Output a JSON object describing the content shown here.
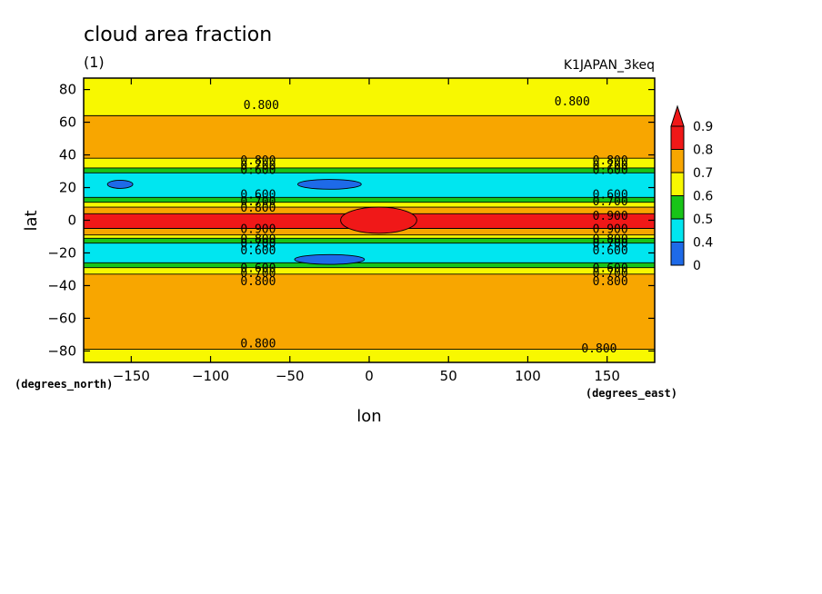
{
  "chart_data": {
    "type": "heatmap",
    "title": "cloud area fraction",
    "subtitle": "(1)",
    "run_label": "K1JAPAN_3keq",
    "xlabel": "lon",
    "ylabel": "lat",
    "x_unit": "(degrees_east)",
    "y_unit": "(degrees_north)",
    "xlim": [
      -180,
      180
    ],
    "ylim": [
      -87,
      87
    ],
    "x_ticks": [
      -150,
      -100,
      -50,
      0,
      50,
      100,
      150
    ],
    "x_tick_labels": [
      "−150",
      "−100",
      "−50",
      "0",
      "50",
      "100",
      "150"
    ],
    "y_ticks": [
      -80,
      -60,
      -40,
      -20,
      0,
      20,
      40,
      60,
      80
    ],
    "y_tick_labels": [
      "−80",
      "−60",
      "−40",
      "−20",
      "0",
      "20",
      "40",
      "60",
      "80"
    ],
    "zonal_bands": [
      {
        "lat": [
          64,
          87
        ],
        "level": 0.7
      },
      {
        "lat": [
          38,
          64
        ],
        "level": 0.8
      },
      {
        "lat": [
          32,
          38
        ],
        "level": 0.7
      },
      {
        "lat": [
          29,
          32
        ],
        "level": 0.6
      },
      {
        "lat": [
          14,
          29
        ],
        "level": 0.5
      },
      {
        "lat": [
          11,
          14
        ],
        "level": 0.6
      },
      {
        "lat": [
          8,
          11
        ],
        "level": 0.7
      },
      {
        "lat": [
          4,
          8
        ],
        "level": 0.8
      },
      {
        "lat": [
          -5,
          4
        ],
        "level": 0.9
      },
      {
        "lat": [
          -9,
          -5
        ],
        "level": 0.8
      },
      {
        "lat": [
          -11,
          -9
        ],
        "level": 0.7
      },
      {
        "lat": [
          -14,
          -11
        ],
        "level": 0.6
      },
      {
        "lat": [
          -26,
          -14
        ],
        "level": 0.5
      },
      {
        "lat": [
          -29,
          -26
        ],
        "level": 0.6
      },
      {
        "lat": [
          -33,
          -29
        ],
        "level": 0.7
      },
      {
        "lat": [
          -79,
          -33
        ],
        "level": 0.8
      },
      {
        "lat": [
          -87,
          -79
        ],
        "level": 0.7
      }
    ],
    "features": [
      {
        "shape": "ellipse",
        "lon": 6,
        "lat": 0,
        "rlon": 24,
        "rlat": 8,
        "level": 0.9
      },
      {
        "shape": "ellipse",
        "lon": -25,
        "lat": 22,
        "rlon": 20,
        "rlat": 3,
        "level": 0.4
      },
      {
        "shape": "ellipse",
        "lon": -25,
        "lat": -24,
        "rlon": 22,
        "rlat": 3,
        "level": 0.4
      },
      {
        "shape": "ellipse",
        "lon": -157,
        "lat": 22,
        "rlon": 8,
        "rlat": 2.5,
        "level": 0.4
      }
    ],
    "contour_labels": [
      {
        "text": "0.800",
        "lon": -68,
        "lat": 71
      },
      {
        "text": "0.800",
        "lon": 128,
        "lat": 73
      },
      {
        "text": "0.800",
        "lon": -70,
        "lat": -75
      },
      {
        "text": "0.800",
        "lon": 145,
        "lat": -78
      },
      {
        "text": "0.800",
        "lon": -70,
        "lat": 37
      },
      {
        "text": "0.700",
        "lon": -70,
        "lat": 34
      },
      {
        "text": "0.600",
        "lon": -70,
        "lat": 31
      },
      {
        "text": "0.600",
        "lon": -70,
        "lat": 16
      },
      {
        "text": "0.700",
        "lon": -70,
        "lat": 12
      },
      {
        "text": "0.800",
        "lon": -70,
        "lat": 8
      },
      {
        "text": "0.900",
        "lon": -70,
        "lat": -5
      },
      {
        "text": "0.800",
        "lon": -70,
        "lat": -11
      },
      {
        "text": "0.700",
        "lon": -70,
        "lat": -14
      },
      {
        "text": "0.600",
        "lon": -70,
        "lat": -18
      },
      {
        "text": "0.600",
        "lon": -70,
        "lat": -29
      },
      {
        "text": "0.700",
        "lon": -70,
        "lat": -32
      },
      {
        "text": "0.800",
        "lon": -70,
        "lat": -37
      },
      {
        "text": "0.800",
        "lon": 152,
        "lat": 37
      },
      {
        "text": "0.700",
        "lon": 152,
        "lat": 34
      },
      {
        "text": "0.600",
        "lon": 152,
        "lat": 31
      },
      {
        "text": "0.600",
        "lon": 152,
        "lat": 16
      },
      {
        "text": "0.700",
        "lon": 152,
        "lat": 12
      },
      {
        "text": "0.900",
        "lon": 152,
        "lat": 3
      },
      {
        "text": "0.900",
        "lon": 152,
        "lat": -5
      },
      {
        "text": "0.800",
        "lon": 152,
        "lat": -11
      },
      {
        "text": "0.700",
        "lon": 152,
        "lat": -14
      },
      {
        "text": "0.600",
        "lon": 152,
        "lat": -18
      },
      {
        "text": "0.600",
        "lon": 152,
        "lat": -29
      },
      {
        "text": "0.700",
        "lon": 152,
        "lat": -32
      },
      {
        "text": "0.800",
        "lon": 152,
        "lat": -37
      }
    ],
    "colorbar": {
      "labels": [
        "0",
        "0.4",
        "0.5",
        "0.6",
        "0.7",
        "0.8",
        "0.9"
      ],
      "colors": [
        "#1e6ae8",
        "#00e6f0",
        "#18c418",
        "#f8f800",
        "#f8a600",
        "#f01818"
      ],
      "overflow_color": "#f01818"
    },
    "level_colors": {
      "0.4": "#1e6ae8",
      "0.5": "#00e6f0",
      "0.6": "#18c418",
      "0.7": "#f8f800",
      "0.8": "#f8a600",
      "0.9": "#f01818"
    }
  }
}
